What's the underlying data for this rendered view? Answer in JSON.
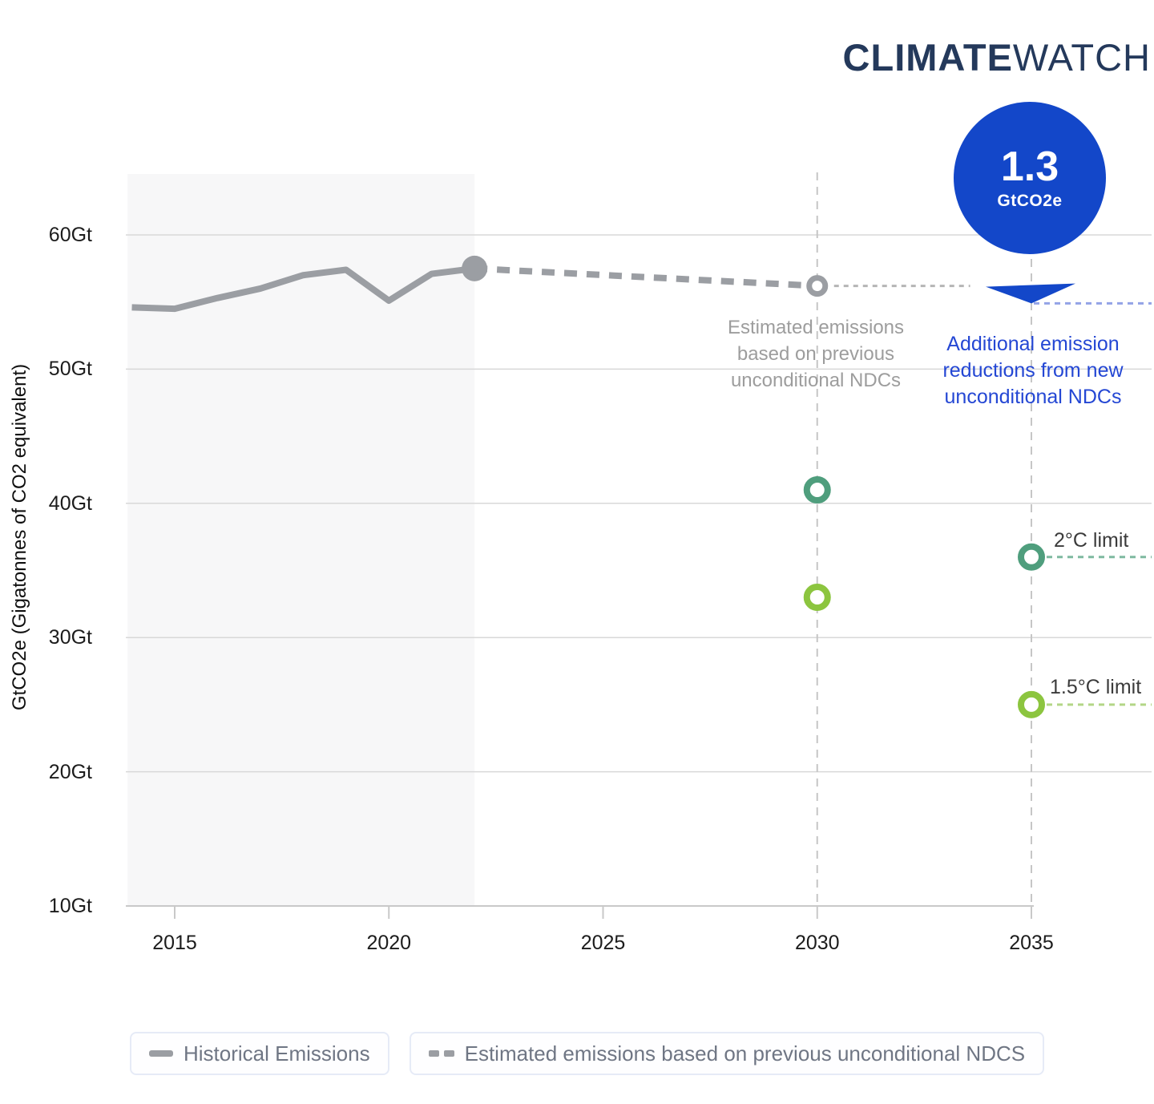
{
  "header": {
    "logo_bold": "CLIMATE",
    "logo_light": "WATCH"
  },
  "badge": {
    "value": "1.3",
    "unit": "GtCO2e"
  },
  "annotations": {
    "previous_ndc_lines": [
      "Estimated emissions",
      "based on previous",
      "unconditional NDCs"
    ],
    "new_ndc_lines": [
      "Additional emission",
      "reductions from new",
      "unconditional NDCs"
    ],
    "limit_2c_label": "2°C limit",
    "limit_15c_label": "1.5°C limit"
  },
  "colors": {
    "accent_blue": "#1347C9",
    "blue_text": "#2447D4",
    "blue_dashed_line": "#93A3E6",
    "line_gray": "#9B9EA3",
    "grid_gray": "#D8D8D8",
    "dark_green_2c": "#4F9E7D",
    "light_green_15c": "#8CC53F",
    "shading": "#F7F7F8",
    "logo_navy": "#24395B"
  },
  "chart_data": {
    "type": "line",
    "title": "",
    "xlabel": "",
    "ylabel": "GtCO2e (Gigatonnes of CO2 equivalent)",
    "xlim": [
      2013.9,
      2037.8
    ],
    "ylim": [
      10,
      64.5
    ],
    "grid": true,
    "x_ticks": [
      2015,
      2020,
      2025,
      2030,
      2035
    ],
    "y_ticks": [
      {
        "value": 60,
        "label": "60Gt"
      },
      {
        "value": 50,
        "label": "50Gt"
      },
      {
        "value": 40,
        "label": "40Gt"
      },
      {
        "value": 30,
        "label": "30Gt"
      },
      {
        "value": 20,
        "label": "20Gt"
      },
      {
        "value": 10,
        "label": "10Gt"
      }
    ],
    "historical_shading": {
      "start_year": 2013.9,
      "end_year": 2022
    },
    "vertical_guides": [
      2030,
      2035
    ],
    "series": [
      {
        "name": "Historical Emissions",
        "style": "solid",
        "color": "#9B9EA3",
        "x": [
          2014,
          2015,
          2016,
          2017,
          2018,
          2019,
          2020,
          2021,
          2022
        ],
        "y": [
          54.6,
          54.5,
          55.3,
          56.0,
          57.0,
          57.4,
          55.1,
          57.1,
          57.5
        ],
        "end_dot": true
      },
      {
        "name": "Estimated emissions based on previous unconditional NDCS",
        "style": "dashed",
        "color": "#9B9EA3",
        "x": [
          2022,
          2030
        ],
        "y": [
          57.5,
          56.2
        ],
        "end_open_dot": true
      }
    ],
    "markers": [
      {
        "x": 2030,
        "y": 41,
        "series": "2C limit pathway",
        "color": "#4F9E7D"
      },
      {
        "x": 2030,
        "y": 33,
        "series": "1.5C limit pathway",
        "color": "#8CC53F"
      },
      {
        "x": 2035,
        "y": 36,
        "series": "2C limit pathway",
        "color": "#4F9E7D",
        "label": "2°C limit",
        "leader_color": "#7EB9A0"
      },
      {
        "x": 2035,
        "y": 25,
        "series": "1.5C limit pathway",
        "color": "#8CC53F",
        "label": "1.5°C limit",
        "leader_color": "#B3D687"
      }
    ],
    "previous_ndc_guide": {
      "value": 56.2,
      "from_year": 2030,
      "to_year": 2034
    },
    "reduction_arrow": {
      "year": 2035,
      "from_value": 56.2,
      "to_value": 54.9,
      "value": "1.3",
      "unit": "GtCO2e"
    }
  },
  "legend": {
    "items": [
      {
        "swatch": "solid",
        "label": "Historical Emissions"
      },
      {
        "swatch": "dashed",
        "label": "Estimated emissions based on previous unconditional NDCS"
      }
    ]
  }
}
